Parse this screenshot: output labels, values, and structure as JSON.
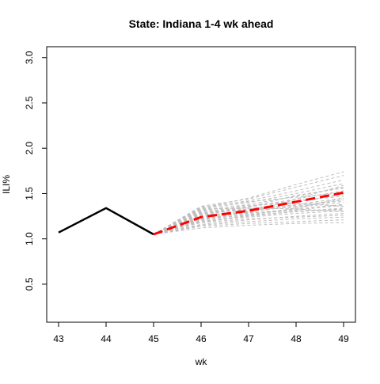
{
  "chart_data": {
    "type": "line",
    "title": "State: Indiana 1-4 wk ahead",
    "xlabel": "wk",
    "ylabel": "ILI%",
    "xlim": [
      42.75,
      49.25
    ],
    "ylim": [
      0.08,
      3.12
    ],
    "x_ticks": [
      "43",
      "44",
      "45",
      "46",
      "47",
      "48",
      "49"
    ],
    "y_ticks": [
      "0.5",
      "1.0",
      "1.5",
      "2.0",
      "2.5",
      "3.0"
    ],
    "grid": false,
    "legend": "none",
    "observed": {
      "x": [
        43,
        44,
        45
      ],
      "y": [
        1.07,
        1.34,
        1.05
      ],
      "color": "#000000"
    },
    "forecast_mean": {
      "x": [
        45,
        46,
        47,
        48,
        49
      ],
      "y": [
        1.05,
        1.24,
        1.31,
        1.41,
        1.51
      ],
      "color": "#ff0000"
    },
    "ensemble_color": "#bebebe",
    "ensemble": [
      [
        1.05,
        1.12,
        1.15,
        1.17,
        1.18
      ],
      [
        1.05,
        1.14,
        1.17,
        1.19,
        1.21
      ],
      [
        1.05,
        1.15,
        1.19,
        1.22,
        1.24
      ],
      [
        1.05,
        1.16,
        1.21,
        1.25,
        1.28
      ],
      [
        1.05,
        1.18,
        1.22,
        1.24,
        1.26
      ],
      [
        1.05,
        1.19,
        1.24,
        1.28,
        1.31
      ],
      [
        1.05,
        1.2,
        1.25,
        1.3,
        1.34
      ],
      [
        1.05,
        1.21,
        1.27,
        1.32,
        1.37
      ],
      [
        1.05,
        1.22,
        1.26,
        1.3,
        1.33
      ],
      [
        1.05,
        1.23,
        1.28,
        1.33,
        1.38
      ],
      [
        1.05,
        1.24,
        1.3,
        1.36,
        1.42
      ],
      [
        1.05,
        1.25,
        1.29,
        1.31,
        1.32
      ],
      [
        1.05,
        1.26,
        1.31,
        1.38,
        1.45
      ],
      [
        1.05,
        1.27,
        1.33,
        1.41,
        1.49
      ],
      [
        1.05,
        1.28,
        1.32,
        1.35,
        1.4
      ],
      [
        1.05,
        1.29,
        1.35,
        1.44,
        1.53
      ],
      [
        1.05,
        1.3,
        1.36,
        1.42,
        1.47
      ],
      [
        1.05,
        1.31,
        1.38,
        1.47,
        1.57
      ],
      [
        1.05,
        1.32,
        1.37,
        1.39,
        1.36
      ],
      [
        1.05,
        1.33,
        1.4,
        1.5,
        1.61
      ],
      [
        1.05,
        1.34,
        1.42,
        1.53,
        1.65
      ],
      [
        1.05,
        1.35,
        1.41,
        1.46,
        1.51
      ],
      [
        1.05,
        1.36,
        1.44,
        1.57,
        1.7
      ],
      [
        1.05,
        1.34,
        1.45,
        1.6,
        1.74
      ],
      [
        1.05,
        1.33,
        1.34,
        1.33,
        1.3
      ],
      [
        1.05,
        1.22,
        1.3,
        1.4,
        1.5
      ],
      [
        1.05,
        1.27,
        1.35,
        1.48,
        1.56
      ],
      [
        1.05,
        1.18,
        1.26,
        1.34,
        1.45
      ],
      [
        1.05,
        1.29,
        1.33,
        1.37,
        1.43
      ],
      [
        1.05,
        1.21,
        1.29,
        1.44,
        1.59
      ]
    ]
  }
}
